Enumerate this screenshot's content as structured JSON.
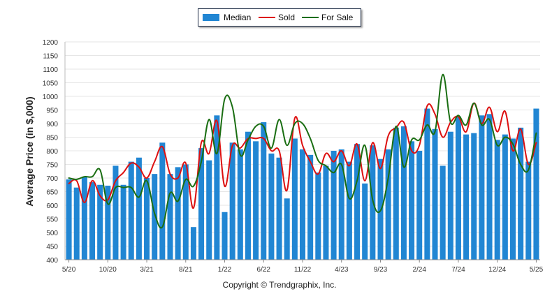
{
  "chart_data": {
    "type": "bar",
    "ylabel": "Average Price (in $,000)",
    "ylim": [
      400,
      1200
    ],
    "yticks": [
      400,
      450,
      500,
      550,
      600,
      650,
      700,
      750,
      800,
      850,
      900,
      950,
      1000,
      1050,
      1100,
      1150,
      1200
    ],
    "xticklabels": [
      "5/20",
      "10/20",
      "3/21",
      "8/21",
      "1/22",
      "6/22",
      "11/22",
      "4/23",
      "9/23",
      "2/24",
      "7/24",
      "12/24",
      "5/25"
    ],
    "categories": [
      "5/20",
      "6/20",
      "7/20",
      "8/20",
      "9/20",
      "10/20",
      "11/20",
      "12/20",
      "1/21",
      "2/21",
      "3/21",
      "4/21",
      "5/21",
      "6/21",
      "7/21",
      "8/21",
      "9/21",
      "10/21",
      "11/21",
      "12/21",
      "1/22",
      "2/22",
      "3/22",
      "4/22",
      "5/22",
      "6/22",
      "7/22",
      "8/22",
      "9/22",
      "10/22",
      "11/22",
      "12/22",
      "1/23",
      "2/23",
      "3/23",
      "4/23",
      "5/23",
      "6/23",
      "7/23",
      "8/23",
      "9/23",
      "10/23",
      "11/23",
      "12/23",
      "1/24",
      "2/24",
      "3/24",
      "4/24",
      "5/24",
      "6/24",
      "7/24",
      "8/24",
      "9/24",
      "10/24",
      "11/24",
      "12/24",
      "1/25",
      "2/25",
      "3/25",
      "4/25",
      "5/25"
    ],
    "series": [
      {
        "name": "Median",
        "kind": "bar",
        "color": "#2186d3",
        "values": [
          695,
          665,
          705,
          685,
          675,
          672,
          745,
          675,
          760,
          775,
          700,
          715,
          830,
          715,
          740,
          750,
          520,
          810,
          765,
          930,
          575,
          830,
          805,
          870,
          835,
          905,
          790,
          775,
          625,
          845,
          805,
          785,
          720,
          745,
          800,
          805,
          760,
          825,
          680,
          820,
          770,
          805,
          885,
          890,
          835,
          800,
          955,
          880,
          745,
          870,
          925,
          860,
          865,
          930,
          935,
          840,
          860,
          845,
          885,
          760,
          955
        ]
      },
      {
        "name": "Sold",
        "kind": "line",
        "color": "#dd1111",
        "values": [
          680,
          690,
          610,
          690,
          635,
          620,
          690,
          720,
          755,
          740,
          700,
          760,
          815,
          715,
          700,
          755,
          590,
          830,
          790,
          910,
          670,
          820,
          810,
          845,
          845,
          845,
          800,
          800,
          655,
          920,
          820,
          760,
          715,
          790,
          760,
          800,
          745,
          825,
          690,
          830,
          735,
          855,
          885,
          905,
          800,
          820,
          965,
          935,
          850,
          905,
          925,
          870,
          975,
          900,
          960,
          870,
          945,
          800,
          880,
          750,
          830
        ]
      },
      {
        "name": "For Sale",
        "kind": "line",
        "color": "#1a6e12",
        "values": [
          700,
          695,
          705,
          705,
          730,
          605,
          665,
          665,
          665,
          630,
          690,
          570,
          520,
          645,
          615,
          695,
          670,
          760,
          915,
          790,
          990,
          960,
          785,
          840,
          890,
          890,
          810,
          915,
          820,
          900,
          900,
          845,
          765,
          745,
          720,
          750,
          625,
          690,
          820,
          620,
          580,
          700,
          890,
          740,
          840,
          840,
          895,
          870,
          1080,
          905,
          930,
          895,
          975,
          895,
          915,
          820,
          850,
          825,
          750,
          730,
          865
        ]
      }
    ],
    "legend_position": "top-center",
    "grid": "horizontal"
  },
  "footer": {
    "copyright": "Copyright © Trendgraphix, Inc."
  },
  "colors": {
    "bar": "#2186d3",
    "sold": "#dd1111",
    "for_sale": "#1a6e12",
    "grid": "#e6e6e6"
  }
}
